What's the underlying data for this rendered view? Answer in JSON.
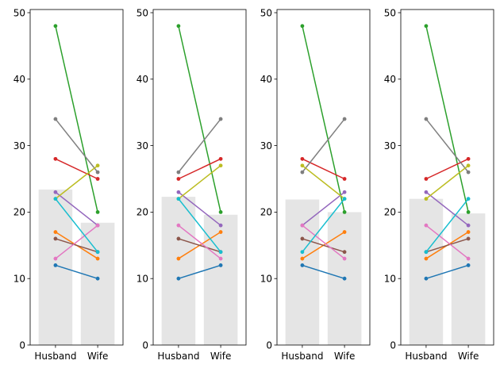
{
  "chart_data": {
    "type": "bar",
    "layout": "four panels side by side, shared categories, gray mean bars with paired-point lines",
    "categories": [
      "Husband",
      "Wife"
    ],
    "ylim": [
      0,
      50
    ],
    "yticks": [
      0,
      10,
      20,
      30,
      40,
      50
    ],
    "bar_color": "#e5e5e5",
    "grid": false,
    "legend": "none",
    "series_colors": [
      "#1f77b4",
      "#ff7f0e",
      "#2ca02c",
      "#d62728",
      "#9467bd",
      "#8c564b",
      "#e377c2",
      "#7f7f7f",
      "#bcbd22",
      "#17becf"
    ],
    "panels": [
      {
        "bars": [
          23.4,
          18.4
        ],
        "pairs": [
          [
            12,
            10
          ],
          [
            17,
            13
          ],
          [
            48,
            20
          ],
          [
            28,
            25
          ],
          [
            23,
            18
          ],
          [
            16,
            14
          ],
          [
            13,
            18
          ],
          [
            34,
            26
          ],
          [
            22,
            27
          ],
          [
            22,
            14
          ]
        ]
      },
      {
        "bars": [
          22.3,
          19.6
        ],
        "pairs": [
          [
            10,
            12
          ],
          [
            13,
            17
          ],
          [
            48,
            20
          ],
          [
            25,
            28
          ],
          [
            23,
            18
          ],
          [
            16,
            14
          ],
          [
            18,
            13
          ],
          [
            26,
            34
          ],
          [
            22,
            27
          ],
          [
            22,
            14
          ]
        ]
      },
      {
        "bars": [
          21.9,
          20.0
        ],
        "pairs": [
          [
            12,
            10
          ],
          [
            13,
            17
          ],
          [
            48,
            20
          ],
          [
            28,
            25
          ],
          [
            18,
            23
          ],
          [
            16,
            14
          ],
          [
            18,
            13
          ],
          [
            26,
            34
          ],
          [
            27,
            22
          ],
          [
            14,
            22
          ]
        ]
      },
      {
        "bars": [
          22.0,
          19.8
        ],
        "pairs": [
          [
            10,
            12
          ],
          [
            13,
            17
          ],
          [
            48,
            20
          ],
          [
            25,
            28
          ],
          [
            23,
            18
          ],
          [
            14,
            16
          ],
          [
            18,
            13
          ],
          [
            34,
            26
          ],
          [
            22,
            27
          ],
          [
            14,
            22
          ]
        ]
      }
    ]
  }
}
